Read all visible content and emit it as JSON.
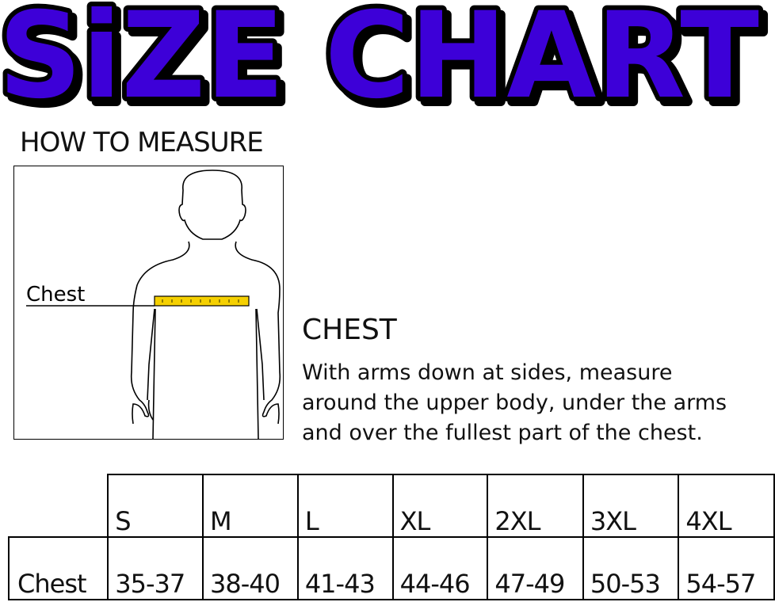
{
  "title": "SiZE CHART",
  "how_to_measure": "HOW TO MEASURE",
  "figure": {
    "chest_label": "Chest",
    "tape_color": "#f5d000"
  },
  "chest_heading": "CHEST",
  "description": [
    "With arms down at sides, measure",
    "around the upper body, under the arms",
    "and over the fullest part of the chest."
  ],
  "colors": {
    "title_fill": "#3d00d8",
    "title_outline": "#000000"
  },
  "table": {
    "sizes": [
      "S",
      "M",
      "L",
      "XL",
      "2XL",
      "3XL",
      "4XL"
    ],
    "rows": [
      {
        "label": "Chest",
        "values": [
          "35-37",
          "38-40",
          "41-43",
          "44-46",
          "47-49",
          "50-53",
          "54-57"
        ]
      }
    ]
  }
}
